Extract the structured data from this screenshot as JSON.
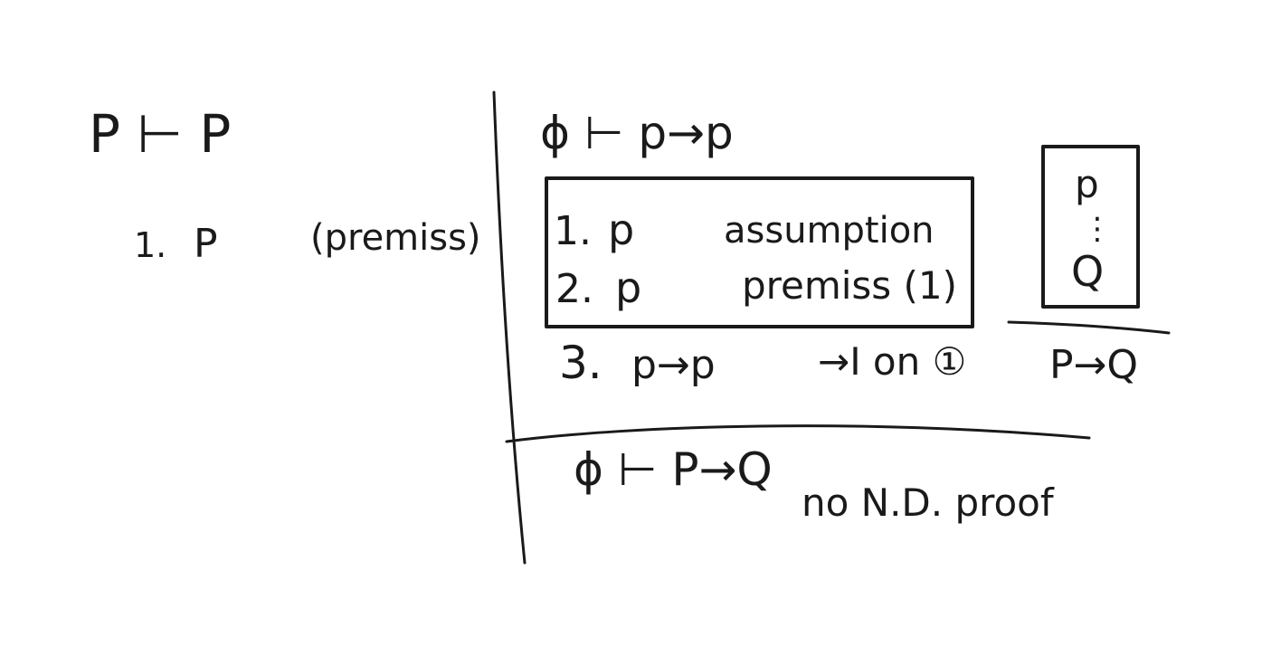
{
  "left": {
    "sequent": "P ⊢ P",
    "line1_num": "1.",
    "line1_formula": "P",
    "line1_rule": "(premiss)"
  },
  "right_top": {
    "sequent": "ϕ ⊢ p→p",
    "box_line1_num": "1.",
    "box_line1_formula": "p",
    "box_line1_rule": "assumption",
    "box_line2_num": "2.",
    "box_line2_formula": "p",
    "box_line2_rule": "premiss (1)",
    "line3_num": "3.",
    "line3_formula": "p→p",
    "line3_rule": "→I on ①"
  },
  "rule_schema": {
    "top": "p",
    "dots": "⋮",
    "bottom": "Q",
    "conclusion": "P→Q"
  },
  "right_bottom": {
    "sequent": "ϕ ⊢ P→Q",
    "note": "no N.D. proof"
  }
}
